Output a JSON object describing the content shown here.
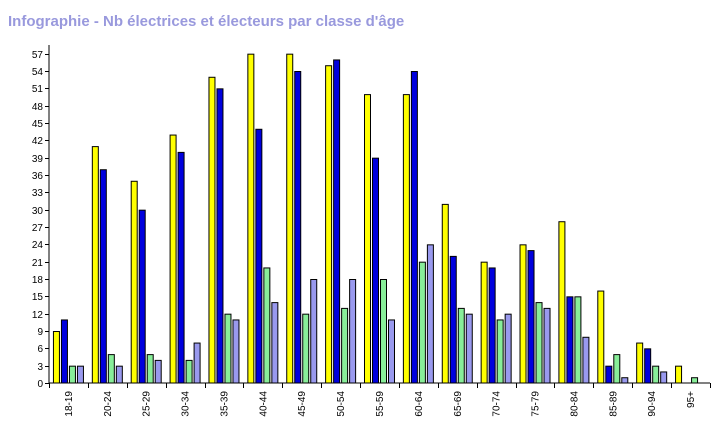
{
  "chart_data": {
    "type": "bar",
    "title": "Infographie - Nb électrices et électeurs par classe d'âge",
    "categories": [
      "18-19",
      "20-24",
      "25-29",
      "30-34",
      "35-39",
      "40-44",
      "45-49",
      "50-54",
      "55-59",
      "60-64",
      "65-69",
      "70-74",
      "75-79",
      "80-84",
      "85-89",
      "90-94",
      "95+"
    ],
    "series": [
      {
        "color": "#ffff00",
        "values": [
          9,
          41,
          35,
          43,
          53,
          57,
          57,
          55,
          50,
          50,
          31,
          21,
          24,
          28,
          16,
          7,
          3
        ]
      },
      {
        "color": "#0000dd",
        "values": [
          11,
          37,
          30,
          40,
          51,
          44,
          54,
          56,
          39,
          54,
          22,
          20,
          23,
          15,
          3,
          6,
          0
        ]
      },
      {
        "color": "#88ee99",
        "values": [
          3,
          5,
          5,
          4,
          12,
          20,
          12,
          13,
          18,
          21,
          13,
          11,
          14,
          15,
          5,
          3,
          1
        ]
      },
      {
        "color": "#9999ee",
        "values": [
          3,
          3,
          4,
          7,
          11,
          14,
          18,
          18,
          11,
          24,
          12,
          12,
          13,
          8,
          1,
          2,
          0
        ]
      }
    ],
    "yticks": [
      0,
      3,
      6,
      9,
      12,
      15,
      18,
      21,
      24,
      27,
      30,
      33,
      36,
      39,
      42,
      45,
      48,
      51,
      54,
      57
    ],
    "ylim": [
      0,
      58.5
    ],
    "grid": false,
    "legend": "none"
  }
}
